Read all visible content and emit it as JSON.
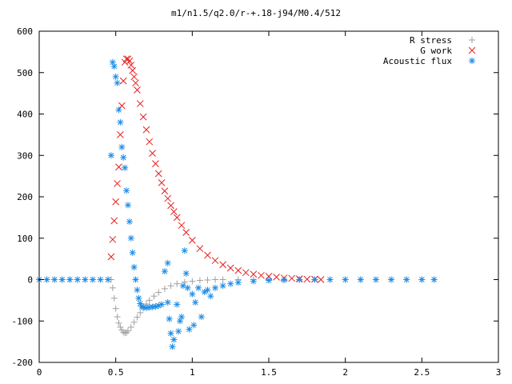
{
  "chart_data": {
    "type": "scatter",
    "title": "m1/n1.5/q2.0/r-+.18-j94/M0.4/512",
    "xlabel": "",
    "ylabel": "",
    "xlim": [
      0,
      3
    ],
    "ylim": [
      -200,
      600
    ],
    "x_ticks": [
      "0",
      "0.5",
      "1",
      "1.5",
      "2",
      "2.5",
      "3"
    ],
    "y_ticks": [
      "-200",
      "-100",
      "0",
      "100",
      "200",
      "300",
      "400",
      "500",
      "600"
    ],
    "grid": false,
    "legend_position": "top-right",
    "series": [
      {
        "name": "R stress",
        "marker": "plus",
        "color": "#a0a0a0",
        "points": [
          [
            0.0,
            0
          ],
          [
            0.05,
            0
          ],
          [
            0.1,
            0
          ],
          [
            0.15,
            0
          ],
          [
            0.2,
            0
          ],
          [
            0.25,
            0
          ],
          [
            0.3,
            0
          ],
          [
            0.35,
            0
          ],
          [
            0.4,
            0
          ],
          [
            0.45,
            0
          ],
          [
            0.47,
            0
          ],
          [
            0.48,
            -20
          ],
          [
            0.49,
            -45
          ],
          [
            0.5,
            -70
          ],
          [
            0.51,
            -90
          ],
          [
            0.52,
            -105
          ],
          [
            0.53,
            -115
          ],
          [
            0.54,
            -122
          ],
          [
            0.55,
            -127
          ],
          [
            0.56,
            -129
          ],
          [
            0.57,
            -128
          ],
          [
            0.58,
            -124
          ],
          [
            0.6,
            -115
          ],
          [
            0.62,
            -103
          ],
          [
            0.64,
            -91
          ],
          [
            0.66,
            -80
          ],
          [
            0.68,
            -69
          ],
          [
            0.7,
            -59
          ],
          [
            0.72,
            -50
          ],
          [
            0.75,
            -40
          ],
          [
            0.78,
            -31
          ],
          [
            0.82,
            -22
          ],
          [
            0.86,
            -15
          ],
          [
            0.9,
            -10
          ],
          [
            0.95,
            -6
          ],
          [
            1.0,
            -4
          ],
          [
            1.05,
            -2
          ],
          [
            1.1,
            -1
          ],
          [
            1.15,
            0
          ],
          [
            1.2,
            0
          ],
          [
            1.3,
            0
          ],
          [
            1.4,
            0
          ],
          [
            1.5,
            0
          ],
          [
            1.6,
            0
          ],
          [
            1.7,
            0
          ],
          [
            1.8,
            0
          ],
          [
            1.9,
            0
          ],
          [
            2.0,
            0
          ],
          [
            2.1,
            0
          ],
          [
            2.2,
            0
          ],
          [
            2.3,
            0
          ],
          [
            2.4,
            0
          ],
          [
            2.5,
            0
          ],
          [
            2.58,
            0
          ]
        ]
      },
      {
        "name": "G work",
        "marker": "cross",
        "color": "#e81e1e",
        "points": [
          [
            0.47,
            55
          ],
          [
            0.48,
            97
          ],
          [
            0.49,
            142
          ],
          [
            0.5,
            188
          ],
          [
            0.51,
            232
          ],
          [
            0.52,
            272
          ],
          [
            0.53,
            350
          ],
          [
            0.54,
            420
          ],
          [
            0.55,
            480
          ],
          [
            0.56,
            525
          ],
          [
            0.57,
            533
          ],
          [
            0.58,
            533
          ],
          [
            0.59,
            528
          ],
          [
            0.6,
            518
          ],
          [
            0.61,
            505
          ],
          [
            0.62,
            490
          ],
          [
            0.63,
            475
          ],
          [
            0.64,
            458
          ],
          [
            0.66,
            425
          ],
          [
            0.68,
            393
          ],
          [
            0.7,
            362
          ],
          [
            0.72,
            333
          ],
          [
            0.74,
            305
          ],
          [
            0.76,
            280
          ],
          [
            0.78,
            256
          ],
          [
            0.8,
            234
          ],
          [
            0.82,
            214
          ],
          [
            0.84,
            196
          ],
          [
            0.86,
            179
          ],
          [
            0.88,
            164
          ],
          [
            0.9,
            150
          ],
          [
            0.93,
            131
          ],
          [
            0.96,
            114
          ],
          [
            1.0,
            95
          ],
          [
            1.05,
            75
          ],
          [
            1.1,
            59
          ],
          [
            1.15,
            46
          ],
          [
            1.2,
            36
          ],
          [
            1.25,
            28
          ],
          [
            1.3,
            22
          ],
          [
            1.35,
            17
          ],
          [
            1.4,
            13
          ],
          [
            1.45,
            10
          ],
          [
            1.5,
            8
          ],
          [
            1.55,
            6
          ],
          [
            1.6,
            4
          ],
          [
            1.65,
            3
          ],
          [
            1.7,
            2
          ],
          [
            1.75,
            1
          ],
          [
            1.8,
            1
          ],
          [
            1.84,
            0
          ]
        ]
      },
      {
        "name": "Acoustic flux",
        "marker": "star",
        "color": "#1e8ce6",
        "points": [
          [
            0.0,
            0
          ],
          [
            0.05,
            0
          ],
          [
            0.1,
            0
          ],
          [
            0.15,
            0
          ],
          [
            0.2,
            0
          ],
          [
            0.25,
            0
          ],
          [
            0.3,
            0
          ],
          [
            0.35,
            0
          ],
          [
            0.4,
            0
          ],
          [
            0.45,
            0
          ],
          [
            0.47,
            300
          ],
          [
            0.48,
            525
          ],
          [
            0.49,
            515
          ],
          [
            0.5,
            490
          ],
          [
            0.51,
            475
          ],
          [
            0.52,
            410
          ],
          [
            0.53,
            380
          ],
          [
            0.54,
            320
          ],
          [
            0.55,
            295
          ],
          [
            0.56,
            270
          ],
          [
            0.57,
            215
          ],
          [
            0.58,
            180
          ],
          [
            0.59,
            140
          ],
          [
            0.6,
            100
          ],
          [
            0.61,
            65
          ],
          [
            0.62,
            30
          ],
          [
            0.63,
            0
          ],
          [
            0.64,
            -25
          ],
          [
            0.65,
            -45
          ],
          [
            0.66,
            -58
          ],
          [
            0.67,
            -65
          ],
          [
            0.68,
            -67
          ],
          [
            0.7,
            -68
          ],
          [
            0.72,
            -67
          ],
          [
            0.74,
            -66
          ],
          [
            0.76,
            -65
          ],
          [
            0.78,
            -63
          ],
          [
            0.8,
            -60
          ],
          [
            0.82,
            20
          ],
          [
            0.84,
            40
          ],
          [
            0.84,
            -55
          ],
          [
            0.85,
            -95
          ],
          [
            0.86,
            -130
          ],
          [
            0.87,
            -162
          ],
          [
            0.88,
            -145
          ],
          [
            0.9,
            -60
          ],
          [
            0.91,
            -125
          ],
          [
            0.92,
            -100
          ],
          [
            0.93,
            -90
          ],
          [
            0.94,
            -15
          ],
          [
            0.95,
            70
          ],
          [
            0.96,
            15
          ],
          [
            0.97,
            -20
          ],
          [
            0.98,
            -120
          ],
          [
            1.0,
            -35
          ],
          [
            1.01,
            -110
          ],
          [
            1.02,
            -55
          ],
          [
            1.04,
            -20
          ],
          [
            1.06,
            -90
          ],
          [
            1.08,
            -30
          ],
          [
            1.1,
            -25
          ],
          [
            1.12,
            -40
          ],
          [
            1.15,
            -20
          ],
          [
            1.2,
            -15
          ],
          [
            1.25,
            -10
          ],
          [
            1.3,
            -7
          ],
          [
            1.4,
            -4
          ],
          [
            1.5,
            -2
          ],
          [
            1.6,
            -1
          ],
          [
            1.7,
            0
          ],
          [
            1.8,
            0
          ],
          [
            1.9,
            0
          ],
          [
            2.0,
            0
          ],
          [
            2.1,
            0
          ],
          [
            2.2,
            0
          ],
          [
            2.3,
            0
          ],
          [
            2.4,
            0
          ],
          [
            2.5,
            0
          ],
          [
            2.58,
            0
          ]
        ]
      }
    ]
  }
}
